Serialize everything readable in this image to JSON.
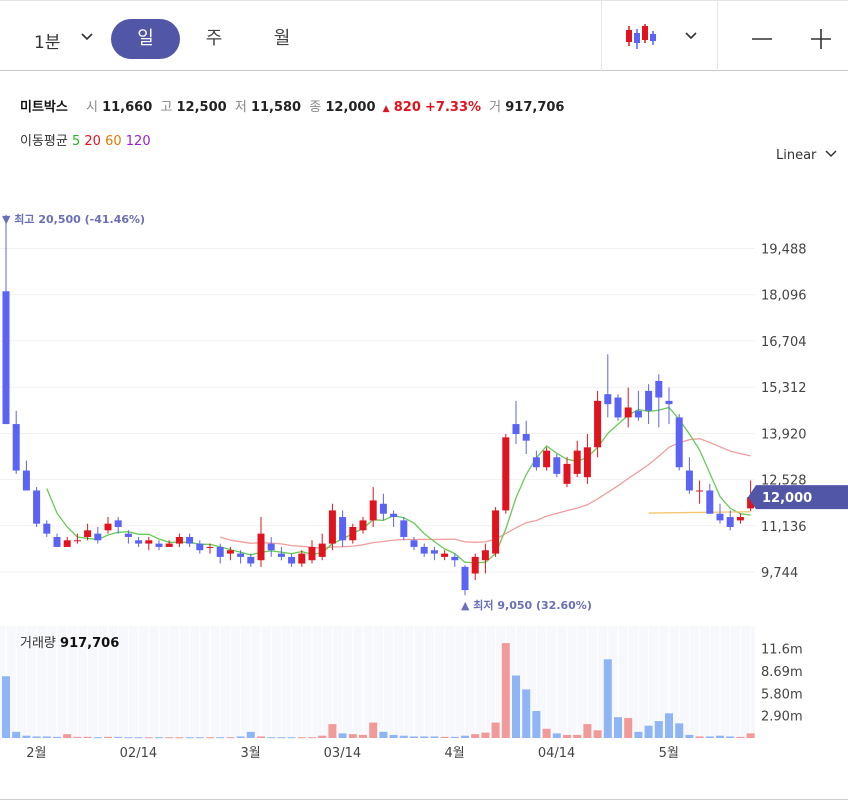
{
  "toolbar": {
    "timeframe": "1분",
    "periods": [
      "일",
      "주",
      "월"
    ],
    "active_period": "일"
  },
  "quote": {
    "name": "미트박스",
    "open_label": "시",
    "open": "11,660",
    "high_label": "고",
    "high": "12,500",
    "low_label": "저",
    "low": "11,580",
    "close_label": "종",
    "close": "12,000",
    "change": "820",
    "change_pct": "+7.33%",
    "volume_label": "거",
    "volume": "917,706"
  },
  "ma": {
    "label": "이동평균",
    "periods": [
      "5",
      "20",
      "60",
      "120"
    ],
    "colors": [
      "#27b327",
      "#e0141e",
      "#e07c00",
      "#9b1fd1"
    ]
  },
  "scale_mode": "Linear",
  "colors": {
    "up": "#e0141e",
    "down": "#5b63f5",
    "accent": "#5256a6",
    "ma5": "#66cc55",
    "ma20": "#f09e9e",
    "ma60": "#f3c66e",
    "vol_up": "#f19a9a",
    "vol_down": "#8fb5f5"
  },
  "chart_data": {
    "type": "candlestick",
    "title": "",
    "price_axis": {
      "ticks": [
        "19,488",
        "18,096",
        "16,704",
        "15,312",
        "13,920",
        "12,528",
        "11,136",
        "9,744"
      ],
      "ylim": [
        8450,
        21400
      ]
    },
    "current_price_label": "12,000",
    "high_marker": {
      "text": "최고 20,500 (-41.46%)",
      "value": 20500
    },
    "low_marker": {
      "text": "최저 9,050 (32.60%)",
      "value": 9050
    },
    "x_tick_labels": [
      "2월",
      "02/14",
      "3월",
      "03/14",
      "4월",
      "04/14",
      "5월"
    ],
    "x_tick_index": [
      2,
      12,
      23,
      32,
      43,
      53,
      64
    ],
    "candles": [
      [
        18200,
        20500,
        14200,
        14200
      ],
      [
        14200,
        14600,
        12700,
        12800
      ],
      [
        12800,
        13100,
        12200,
        12200
      ],
      [
        12200,
        12300,
        11100,
        11200
      ],
      [
        11200,
        11300,
        10800,
        10900
      ],
      [
        10800,
        10900,
        10500,
        10500
      ],
      [
        10500,
        10800,
        10500,
        10700
      ],
      [
        10700,
        10900,
        10600,
        10700
      ],
      [
        10800,
        11200,
        10700,
        11000
      ],
      [
        10900,
        11100,
        10600,
        10700
      ],
      [
        11000,
        11400,
        10900,
        11200
      ],
      [
        11300,
        11400,
        10900,
        11100
      ],
      [
        10900,
        11000,
        10600,
        10800
      ],
      [
        10700,
        10800,
        10500,
        10600
      ],
      [
        10600,
        10800,
        10400,
        10700
      ],
      [
        10600,
        10700,
        10400,
        10500
      ],
      [
        10500,
        10700,
        10500,
        10600
      ],
      [
        10600,
        10900,
        10500,
        10800
      ],
      [
        10800,
        10900,
        10500,
        10600
      ],
      [
        10600,
        10700,
        10300,
        10400
      ],
      [
        10500,
        10600,
        10300,
        10500
      ],
      [
        10500,
        10600,
        10000,
        10200
      ],
      [
        10300,
        10500,
        10100,
        10400
      ],
      [
        10300,
        10400,
        10000,
        10200
      ],
      [
        10200,
        10300,
        9900,
        10000
      ],
      [
        10100,
        11400,
        9900,
        10900
      ],
      [
        10600,
        10800,
        10200,
        10400
      ],
      [
        10300,
        10500,
        10100,
        10200
      ],
      [
        10200,
        10300,
        9900,
        10000
      ],
      [
        10000,
        10400,
        9900,
        10300
      ],
      [
        10100,
        10700,
        10000,
        10500
      ],
      [
        10200,
        10900,
        10100,
        10600
      ],
      [
        10600,
        11800,
        10400,
        11600
      ],
      [
        11400,
        11600,
        10500,
        10700
      ],
      [
        10700,
        11200,
        10600,
        11100
      ],
      [
        11000,
        11400,
        10900,
        11300
      ],
      [
        11300,
        12300,
        11100,
        11900
      ],
      [
        11800,
        12100,
        11300,
        11500
      ],
      [
        11500,
        11600,
        11100,
        11400
      ],
      [
        11300,
        11400,
        10700,
        10800
      ],
      [
        10700,
        10800,
        10400,
        10500
      ],
      [
        10500,
        10600,
        10200,
        10300
      ],
      [
        10400,
        10500,
        10100,
        10300
      ],
      [
        10200,
        10400,
        10100,
        10300
      ],
      [
        10200,
        10300,
        9900,
        10100
      ],
      [
        9900,
        9950,
        9050,
        9200
      ],
      [
        9700,
        10300,
        9500,
        10200
      ],
      [
        10100,
        10600,
        9700,
        10400
      ],
      [
        10300,
        11700,
        10200,
        11600
      ],
      [
        11600,
        13900,
        11500,
        13800
      ],
      [
        14200,
        14900,
        13600,
        13900
      ],
      [
        13900,
        14300,
        13300,
        13700
      ],
      [
        13200,
        13400,
        12800,
        12900
      ],
      [
        12900,
        13500,
        12800,
        13400
      ],
      [
        13200,
        13300,
        12600,
        12700
      ],
      [
        12400,
        13200,
        12300,
        13000
      ],
      [
        12700,
        13700,
        12600,
        13400
      ],
      [
        12600,
        13900,
        12400,
        13500
      ],
      [
        13500,
        15200,
        13200,
        14900
      ],
      [
        15100,
        16300,
        14400,
        14800
      ],
      [
        15000,
        15100,
        14300,
        14400
      ],
      [
        14400,
        15300,
        14100,
        14700
      ],
      [
        14600,
        15200,
        14300,
        14400
      ],
      [
        15200,
        15400,
        14200,
        14600
      ],
      [
        15500,
        15700,
        14100,
        15000
      ],
      [
        14900,
        15300,
        14200,
        14800
      ],
      [
        14400,
        14500,
        12800,
        12900
      ],
      [
        12800,
        13200,
        12100,
        12200
      ],
      [
        12200,
        12500,
        11800,
        12200
      ],
      [
        12200,
        12400,
        11500,
        11500
      ],
      [
        11500,
        11800,
        11200,
        11300
      ],
      [
        11400,
        11600,
        11000,
        11100
      ],
      [
        11300,
        11500,
        11200,
        11400
      ],
      [
        11660,
        12500,
        11580,
        12000
      ]
    ],
    "ma5_start": 1,
    "ma20_start": 21,
    "volume": {
      "label": "거래량",
      "value": "917,706",
      "ticks": [
        "11.6m",
        "8.69m",
        "5.80m",
        "2.90m"
      ],
      "ylim": [
        0,
        14000000
      ],
      "values": [
        8000000,
        800000,
        300000,
        200000,
        200000,
        150000,
        500000,
        150000,
        150000,
        100000,
        150000,
        150000,
        100000,
        100000,
        100000,
        100000,
        100000,
        100000,
        100000,
        100000,
        100000,
        100000,
        100000,
        200000,
        800000,
        200000,
        100000,
        100000,
        100000,
        100000,
        100000,
        300000,
        1800000,
        600000,
        500000,
        400000,
        2000000,
        800000,
        400000,
        300000,
        200000,
        200000,
        200000,
        150000,
        150000,
        300000,
        500000,
        700000,
        2000000,
        12300000,
        8100000,
        6300000,
        3500000,
        1200000,
        600000,
        400000,
        400000,
        1800000,
        1000000,
        10200000,
        2700000,
        2600000,
        800000,
        1600000,
        2200000,
        3200000,
        1900000,
        400000,
        200000,
        200000,
        300000,
        200000,
        150000,
        600000
      ]
    }
  }
}
